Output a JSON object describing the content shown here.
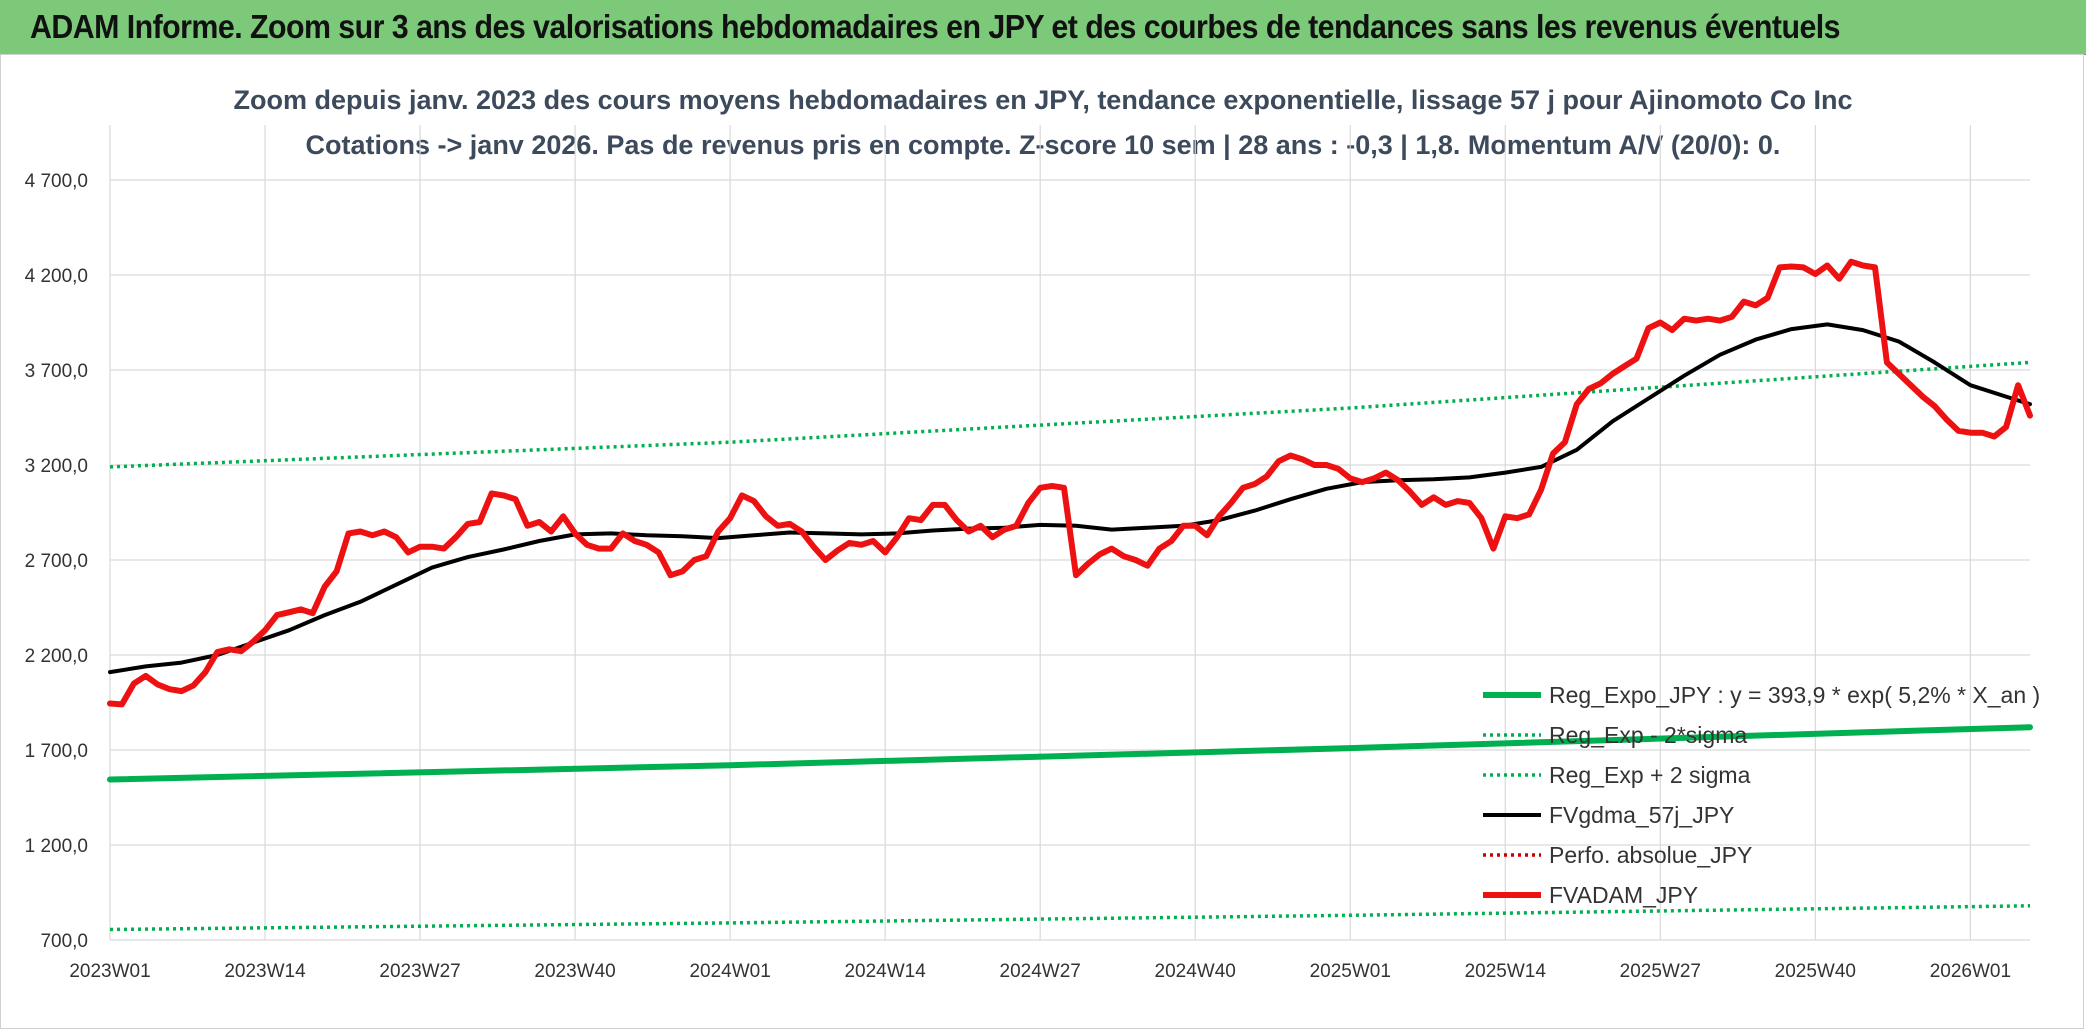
{
  "header": {
    "banner": "ADAM Informe. Zoom sur 3 ans des valorisations hebdomadaires en JPY et des courbes de tendances sans les revenus éventuels"
  },
  "colors": {
    "banner": "#7dc97a",
    "reg_expo": "#00b050",
    "fvgdma": "#000000",
    "fvadam": "#ee1111",
    "perfo": "#cc0000"
  },
  "chart_data": {
    "type": "line",
    "title": "Zoom depuis janv. 2023 des cours moyens hebdomadaires en JPY, tendance exponentielle, lissage 57 j pour Ajinomoto Co Inc",
    "subtitle": "Cotations -> janv 2026. Pas de revenus pris en compte. Z-score 10 sem | 28 ans : -0,3 | 1,8. Momentum A/V (20/0): 0.",
    "xlabel": "",
    "ylabel": "",
    "ylim": [
      700,
      4700
    ],
    "y_ticks": [
      "700,0",
      "1 200,0",
      "1 700,0",
      "2 200,0",
      "2 700,0",
      "3 200,0",
      "3 700,0",
      "4 200,0",
      "4 700,0"
    ],
    "x_ticks": [
      "2023W01",
      "2023W14",
      "2023W27",
      "2023W40",
      "2024W01",
      "2024W14",
      "2024W27",
      "2024W40",
      "2025W01",
      "2025W14",
      "2025W27",
      "2025W40",
      "2026W01"
    ],
    "x_tick_index": [
      0,
      13,
      26,
      39,
      52,
      65,
      78,
      91,
      104,
      117,
      130,
      143,
      156
    ],
    "n_points": 162,
    "grid": true,
    "legend_position": "bottom-right",
    "series": [
      {
        "name": "Reg_Expo_JPY : y = 393,9 * exp( 5,2% *  X_an )",
        "style": "solid-thick",
        "color": "#00b050",
        "knots": [
          [
            0,
            1545
          ],
          [
            52,
            1620
          ],
          [
            104,
            1710
          ],
          [
            161,
            1820
          ]
        ]
      },
      {
        "name": "Reg_Exp - 2*sigma",
        "style": "dotted",
        "color": "#00b050",
        "knots": [
          [
            0,
            755
          ],
          [
            52,
            790
          ],
          [
            104,
            830
          ],
          [
            161,
            880
          ]
        ]
      },
      {
        "name": "Reg_Exp + 2 sigma",
        "style": "dotted",
        "color": "#00b050",
        "knots": [
          [
            0,
            3190
          ],
          [
            52,
            3320
          ],
          [
            104,
            3500
          ],
          [
            161,
            3740
          ]
        ]
      },
      {
        "name": "FVgdma_57j_JPY",
        "style": "solid",
        "color": "#000000",
        "knots": [
          [
            0,
            2110
          ],
          [
            3,
            2140
          ],
          [
            6,
            2160
          ],
          [
            9,
            2200
          ],
          [
            12,
            2265
          ],
          [
            15,
            2330
          ],
          [
            18,
            2410
          ],
          [
            21,
            2480
          ],
          [
            24,
            2570
          ],
          [
            27,
            2660
          ],
          [
            30,
            2715
          ],
          [
            33,
            2755
          ],
          [
            36,
            2800
          ],
          [
            39,
            2835
          ],
          [
            42,
            2840
          ],
          [
            45,
            2830
          ],
          [
            48,
            2825
          ],
          [
            51,
            2815
          ],
          [
            54,
            2830
          ],
          [
            57,
            2845
          ],
          [
            60,
            2840
          ],
          [
            63,
            2835
          ],
          [
            66,
            2840
          ],
          [
            69,
            2855
          ],
          [
            72,
            2865
          ],
          [
            75,
            2870
          ],
          [
            78,
            2885
          ],
          [
            81,
            2880
          ],
          [
            84,
            2860
          ],
          [
            87,
            2870
          ],
          [
            90,
            2880
          ],
          [
            93,
            2910
          ],
          [
            96,
            2960
          ],
          [
            99,
            3020
          ],
          [
            102,
            3075
          ],
          [
            105,
            3110
          ],
          [
            108,
            3120
          ],
          [
            111,
            3125
          ],
          [
            114,
            3135
          ],
          [
            117,
            3160
          ],
          [
            120,
            3190
          ],
          [
            123,
            3280
          ],
          [
            126,
            3430
          ],
          [
            129,
            3550
          ],
          [
            132,
            3670
          ],
          [
            135,
            3780
          ],
          [
            138,
            3860
          ],
          [
            141,
            3915
          ],
          [
            144,
            3940
          ],
          [
            147,
            3910
          ],
          [
            150,
            3850
          ],
          [
            153,
            3740
          ],
          [
            156,
            3620
          ],
          [
            159,
            3560
          ],
          [
            161,
            3520
          ]
        ]
      },
      {
        "name": "Perfo. absolue_JPY",
        "style": "dotted",
        "color": "#cc0000",
        "knots": []
      },
      {
        "name": "FVADAM_JPY",
        "style": "solid-thick",
        "color": "#ee1111",
        "knots": [
          [
            0,
            1945
          ],
          [
            1,
            1940
          ],
          [
            2,
            2050
          ],
          [
            3,
            2090
          ],
          [
            4,
            2045
          ],
          [
            5,
            2020
          ],
          [
            6,
            2010
          ],
          [
            7,
            2040
          ],
          [
            8,
            2110
          ],
          [
            9,
            2215
          ],
          [
            10,
            2230
          ],
          [
            11,
            2220
          ],
          [
            12,
            2270
          ],
          [
            13,
            2330
          ],
          [
            14,
            2410
          ],
          [
            15,
            2425
          ],
          [
            16,
            2440
          ],
          [
            17,
            2420
          ],
          [
            18,
            2560
          ],
          [
            19,
            2640
          ],
          [
            20,
            2840
          ],
          [
            21,
            2850
          ],
          [
            22,
            2830
          ],
          [
            23,
            2850
          ],
          [
            24,
            2820
          ],
          [
            25,
            2740
          ],
          [
            26,
            2770
          ],
          [
            27,
            2770
          ],
          [
            28,
            2760
          ],
          [
            29,
            2820
          ],
          [
            30,
            2890
          ],
          [
            31,
            2900
          ],
          [
            32,
            3050
          ],
          [
            33,
            3040
          ],
          [
            34,
            3020
          ],
          [
            35,
            2880
          ],
          [
            36,
            2900
          ],
          [
            37,
            2850
          ],
          [
            38,
            2930
          ],
          [
            39,
            2840
          ],
          [
            40,
            2780
          ],
          [
            41,
            2760
          ],
          [
            42,
            2760
          ],
          [
            43,
            2840
          ],
          [
            44,
            2800
          ],
          [
            45,
            2780
          ],
          [
            46,
            2740
          ],
          [
            47,
            2620
          ],
          [
            48,
            2640
          ],
          [
            49,
            2700
          ],
          [
            50,
            2720
          ],
          [
            51,
            2850
          ],
          [
            52,
            2920
          ],
          [
            53,
            3040
          ],
          [
            54,
            3010
          ],
          [
            55,
            2930
          ],
          [
            56,
            2880
          ],
          [
            57,
            2890
          ],
          [
            58,
            2850
          ],
          [
            59,
            2770
          ],
          [
            60,
            2700
          ],
          [
            61,
            2750
          ],
          [
            62,
            2790
          ],
          [
            63,
            2780
          ],
          [
            64,
            2800
          ],
          [
            65,
            2740
          ],
          [
            66,
            2820
          ],
          [
            67,
            2920
          ],
          [
            68,
            2910
          ],
          [
            69,
            2990
          ],
          [
            70,
            2990
          ],
          [
            71,
            2910
          ],
          [
            72,
            2850
          ],
          [
            73,
            2880
          ],
          [
            74,
            2820
          ],
          [
            75,
            2860
          ],
          [
            76,
            2880
          ],
          [
            77,
            3000
          ],
          [
            78,
            3080
          ],
          [
            79,
            3090
          ],
          [
            80,
            3080
          ],
          [
            81,
            2620
          ],
          [
            82,
            2680
          ],
          [
            83,
            2730
          ],
          [
            84,
            2760
          ],
          [
            85,
            2720
          ],
          [
            86,
            2700
          ],
          [
            87,
            2670
          ],
          [
            88,
            2760
          ],
          [
            89,
            2800
          ],
          [
            90,
            2880
          ],
          [
            91,
            2880
          ],
          [
            92,
            2830
          ],
          [
            93,
            2930
          ],
          [
            94,
            3000
          ],
          [
            95,
            3080
          ],
          [
            96,
            3100
          ],
          [
            97,
            3140
          ],
          [
            98,
            3220
          ],
          [
            99,
            3250
          ],
          [
            100,
            3230
          ],
          [
            101,
            3200
          ],
          [
            102,
            3200
          ],
          [
            103,
            3180
          ],
          [
            104,
            3130
          ],
          [
            105,
            3110
          ],
          [
            106,
            3130
          ],
          [
            107,
            3160
          ],
          [
            108,
            3120
          ],
          [
            109,
            3060
          ],
          [
            110,
            2990
          ],
          [
            111,
            3030
          ],
          [
            112,
            2990
          ],
          [
            113,
            3010
          ],
          [
            114,
            3000
          ],
          [
            115,
            2920
          ],
          [
            116,
            2760
          ],
          [
            117,
            2930
          ],
          [
            118,
            2920
          ],
          [
            119,
            2940
          ],
          [
            120,
            3070
          ],
          [
            121,
            3260
          ],
          [
            122,
            3320
          ],
          [
            123,
            3520
          ],
          [
            124,
            3600
          ],
          [
            125,
            3630
          ],
          [
            126,
            3680
          ],
          [
            127,
            3720
          ],
          [
            128,
            3760
          ],
          [
            129,
            3920
          ],
          [
            130,
            3950
          ],
          [
            131,
            3910
          ],
          [
            132,
            3970
          ],
          [
            133,
            3960
          ],
          [
            134,
            3970
          ],
          [
            135,
            3960
          ],
          [
            136,
            3980
          ],
          [
            137,
            4060
          ],
          [
            138,
            4040
          ],
          [
            139,
            4080
          ],
          [
            140,
            4240
          ],
          [
            141,
            4245
          ],
          [
            142,
            4240
          ],
          [
            143,
            4205
          ],
          [
            144,
            4250
          ],
          [
            145,
            4180
          ],
          [
            146,
            4270
          ],
          [
            147,
            4250
          ],
          [
            148,
            4240
          ],
          [
            149,
            3740
          ],
          [
            150,
            3680
          ],
          [
            151,
            3620
          ],
          [
            152,
            3560
          ],
          [
            153,
            3510
          ],
          [
            154,
            3440
          ],
          [
            155,
            3380
          ],
          [
            156,
            3370
          ],
          [
            157,
            3370
          ],
          [
            158,
            3350
          ],
          [
            159,
            3400
          ],
          [
            160,
            3620
          ],
          [
            161,
            3460
          ]
        ]
      }
    ]
  }
}
